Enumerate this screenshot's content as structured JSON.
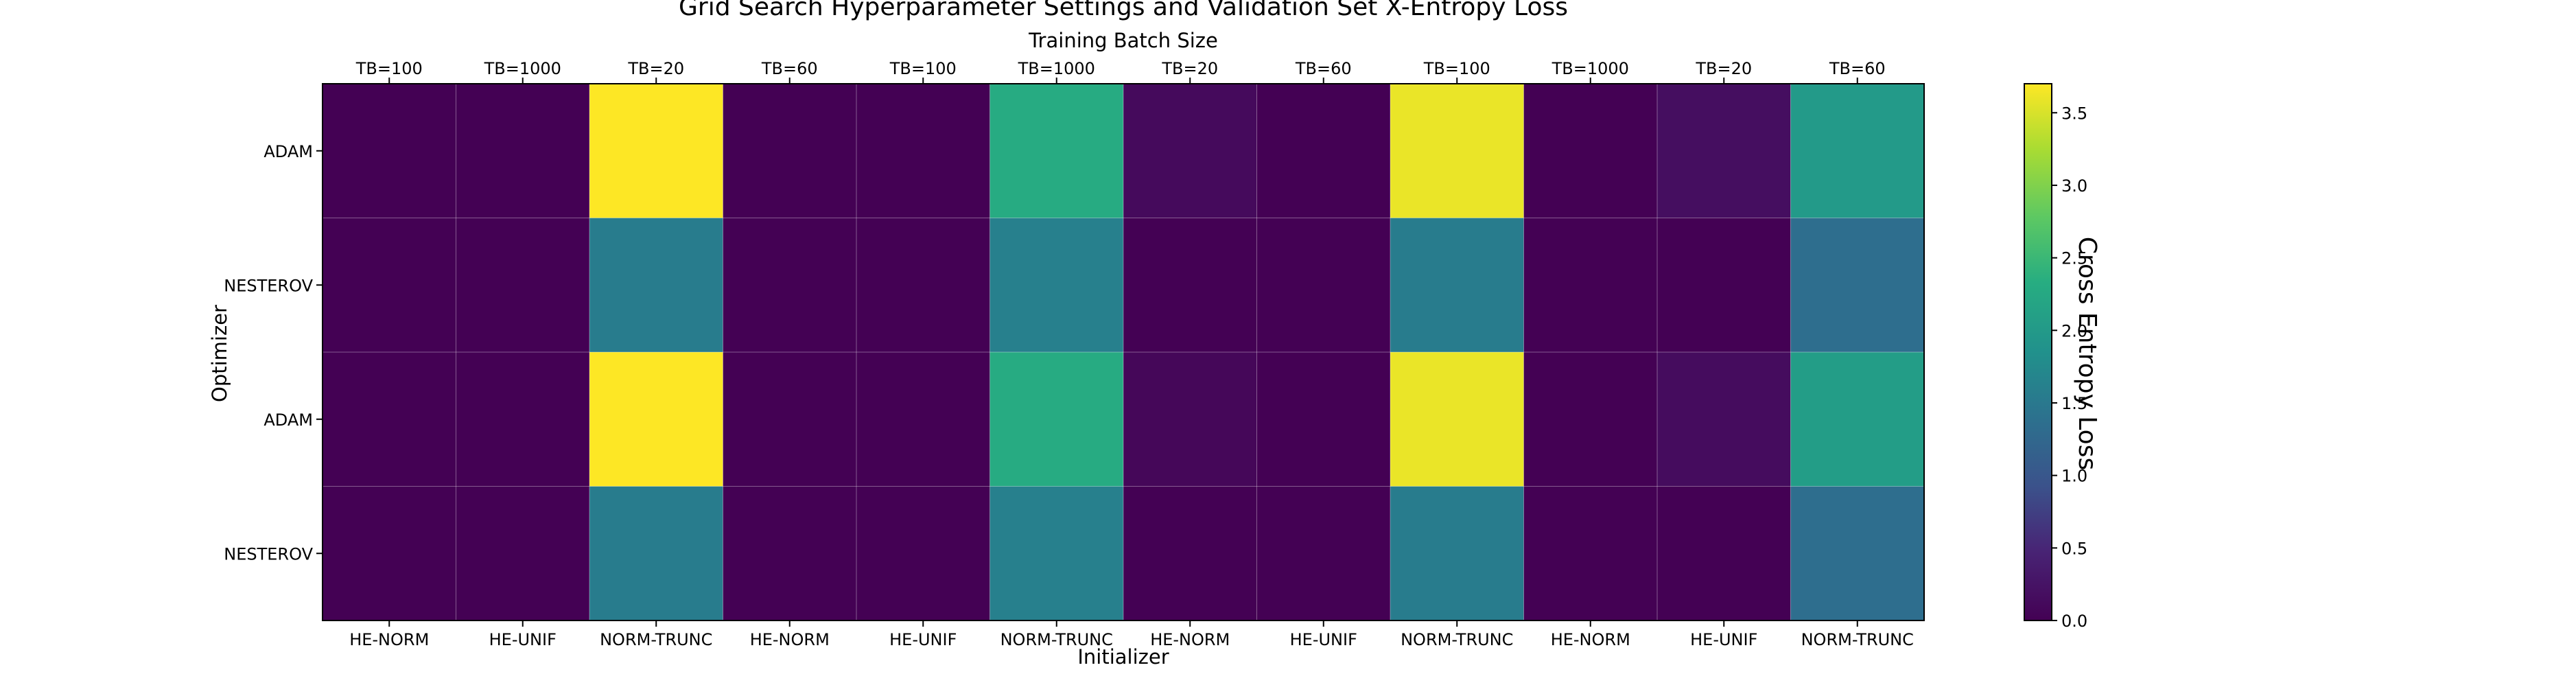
{
  "chart_data": {
    "type": "heatmap",
    "title": "Grid Search Hyperparameter Settings and Validation Set X-Entropy Loss",
    "top_axis_label": "Training Batch Size",
    "top_tick_labels": [
      "TB=100",
      "TB=1000",
      "TB=20",
      "TB=60",
      "TB=100",
      "TB=1000",
      "TB=20",
      "TB=60",
      "TB=100",
      "TB=1000",
      "TB=20",
      "TB=60"
    ],
    "xlabel": "Initializer",
    "x_tick_labels": [
      "HE-NORM",
      "HE-UNIF",
      "NORM-TRUNC",
      "HE-NORM",
      "HE-UNIF",
      "NORM-TRUNC",
      "HE-NORM",
      "HE-UNIF",
      "NORM-TRUNC",
      "HE-NORM",
      "HE-UNIF",
      "NORM-TRUNC"
    ],
    "ylabel": "Optimizer",
    "y_tick_labels": [
      "ADAM",
      "NESTEROV",
      "ADAM",
      "NESTEROV"
    ],
    "values": [
      [
        0.0,
        0.0,
        3.7,
        0.0,
        0.0,
        2.3,
        0.12,
        0.0,
        3.6,
        0.0,
        0.18,
        2.0
      ],
      [
        0.0,
        0.0,
        1.55,
        0.0,
        0.0,
        1.6,
        0.0,
        0.0,
        1.55,
        0.0,
        0.0,
        1.35
      ],
      [
        0.0,
        0.0,
        3.7,
        0.0,
        0.0,
        2.3,
        0.08,
        0.0,
        3.6,
        0.0,
        0.15,
        2.05
      ],
      [
        0.0,
        0.0,
        1.55,
        0.0,
        0.0,
        1.6,
        0.0,
        0.0,
        1.55,
        0.0,
        0.0,
        1.35
      ]
    ],
    "colorbar": {
      "label": "Cross Entropy Loss",
      "min": 0.0,
      "max": 3.7,
      "ticks": [
        "0.0",
        "0.5",
        "1.0",
        "1.5",
        "2.0",
        "2.5",
        "3.0",
        "3.5"
      ],
      "colormap": "viridis"
    }
  }
}
